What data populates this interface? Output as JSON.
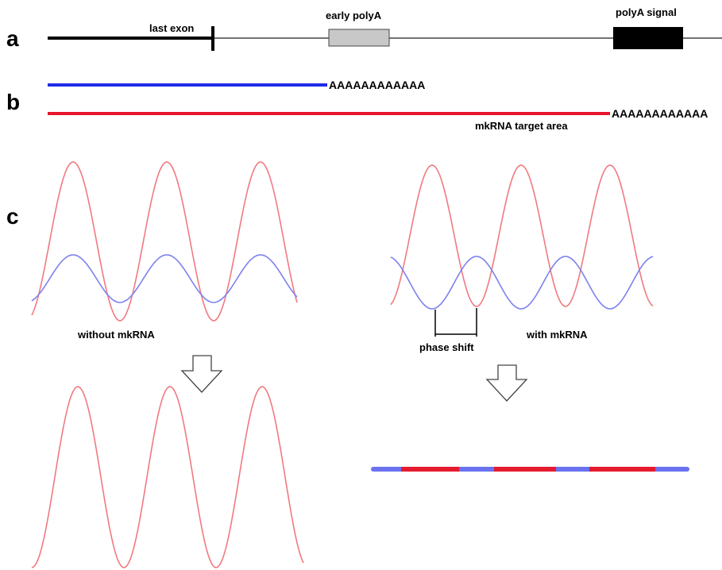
{
  "panels": {
    "a": {
      "letter": "a",
      "last_exon": "last exon",
      "early_polya": "early polyA",
      "polya_signal": "polyA signal"
    },
    "b": {
      "letter": "b",
      "short_tail": "AAAAAAAAAAAA",
      "long_tail": "AAAAAAAAAAAA",
      "target_area": "mkRNA target area"
    },
    "c": {
      "letter": "c",
      "without": "without mkRNA",
      "with": "with mkRNA",
      "phase_shift": "phase shift"
    }
  },
  "colors": {
    "blue_transcript": "#1f2be6",
    "red_transcript": "#e8142a",
    "wave_red": "#f07a80",
    "wave_blue": "#7d82ee",
    "box_grey": "#c8c8c8",
    "box_black": "#000000",
    "bar_blue": "#6a72f0",
    "bar_red": "#e41a2e"
  }
}
